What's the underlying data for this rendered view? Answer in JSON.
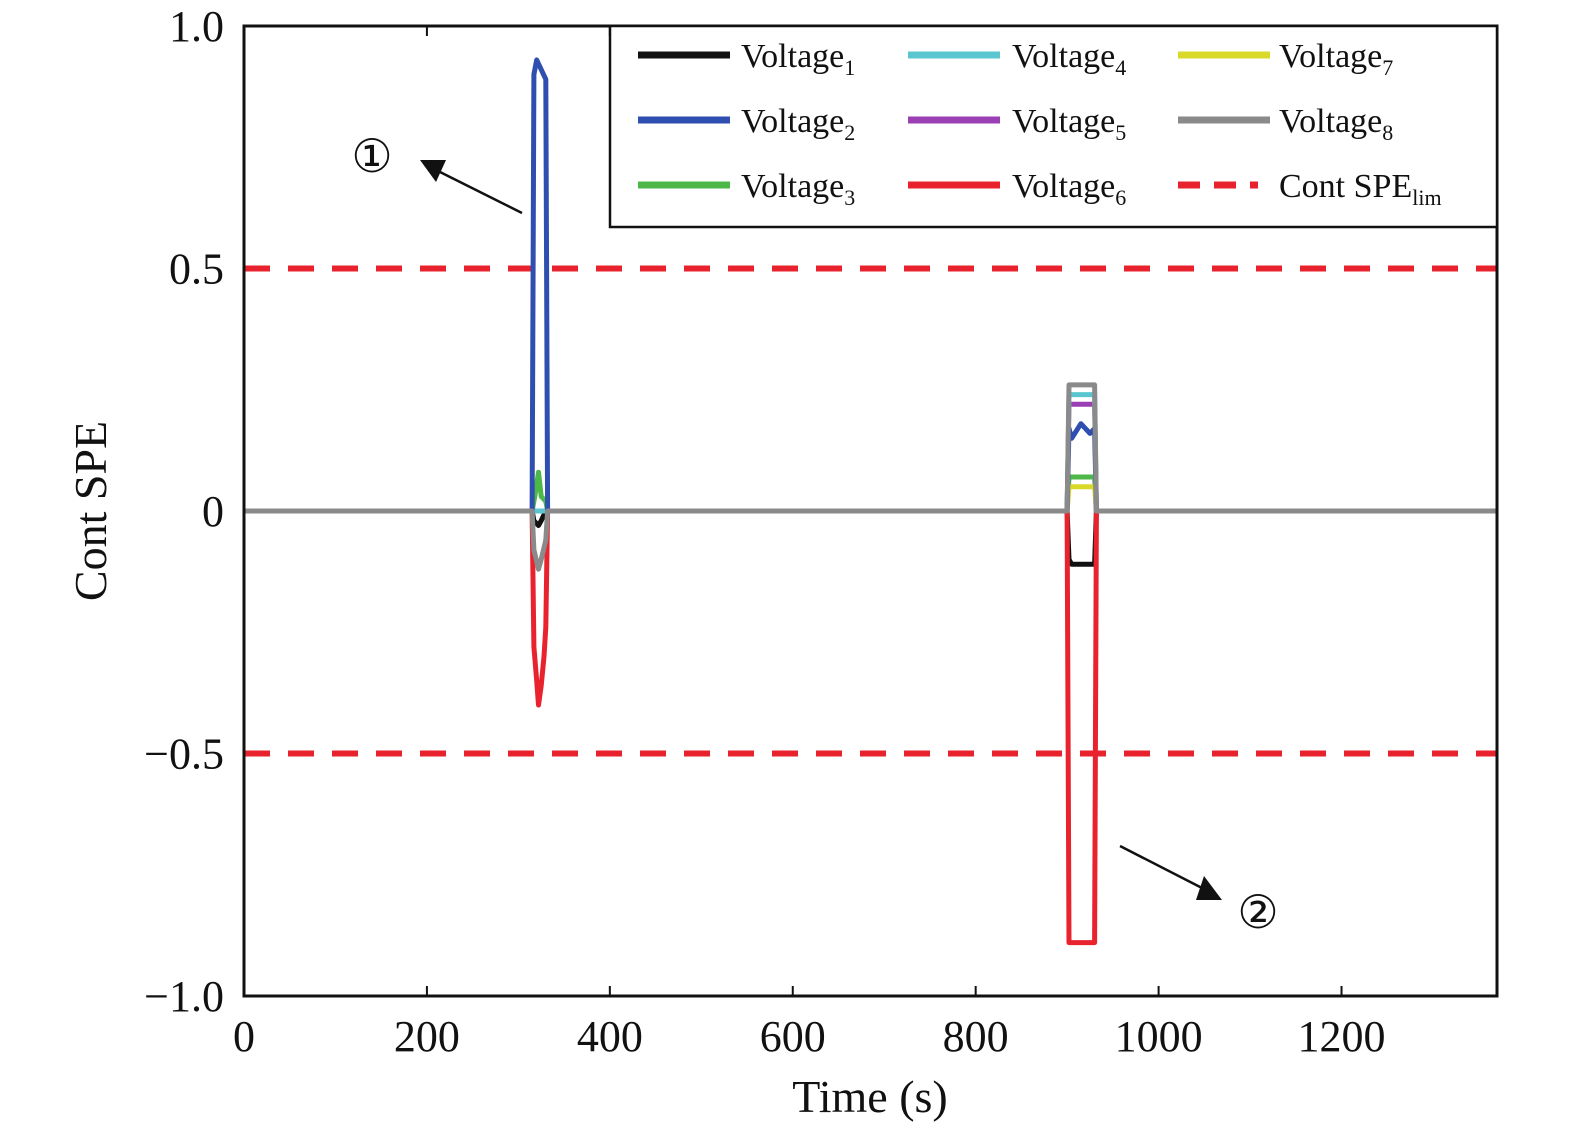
{
  "chart_data": {
    "type": "line",
    "title": "",
    "xlabel": "Time (s)",
    "ylabel": "Cont SPE",
    "xlim": [
      0,
      1370
    ],
    "ylim": [
      -1.0,
      1.0
    ],
    "x_ticks": [
      0,
      200,
      400,
      600,
      800,
      1000,
      1200
    ],
    "x_tick_labels": [
      "0",
      "200",
      "400",
      "600",
      "800",
      "1000",
      "1200"
    ],
    "y_ticks": [
      1.0,
      0.5,
      0,
      -0.5,
      -1.0
    ],
    "y_tick_labels": [
      "1.0",
      "0.5",
      "0",
      "−0.5",
      "−1.0"
    ],
    "grid": false,
    "legend_position": "top-right",
    "series": [
      {
        "name": "Voltage",
        "subscript": "1",
        "color": "#111111",
        "style": "solid",
        "points": [
          [
            0,
            0
          ],
          [
            315,
            0
          ],
          [
            317,
            -0.02
          ],
          [
            322,
            -0.03
          ],
          [
            325,
            -0.02
          ],
          [
            330,
            0
          ],
          [
            900,
            0
          ],
          [
            902,
            -0.1
          ],
          [
            905,
            -0.11
          ],
          [
            930,
            -0.11
          ],
          [
            932,
            0
          ],
          [
            1370,
            0
          ]
        ]
      },
      {
        "name": "Voltage",
        "subscript": "2",
        "color": "#2f4fb0",
        "style": "solid",
        "points": [
          [
            0,
            0
          ],
          [
            315,
            0
          ],
          [
            317,
            0.9
          ],
          [
            320,
            0.93
          ],
          [
            325,
            0.91
          ],
          [
            330,
            0.89
          ],
          [
            332,
            0
          ],
          [
            900,
            0
          ],
          [
            902,
            0.17
          ],
          [
            905,
            0.15
          ],
          [
            915,
            0.18
          ],
          [
            925,
            0.16
          ],
          [
            930,
            0.17
          ],
          [
            932,
            0
          ],
          [
            1370,
            0
          ]
        ]
      },
      {
        "name": "Voltage",
        "subscript": "3",
        "color": "#4db848",
        "style": "solid",
        "points": [
          [
            0,
            0
          ],
          [
            315,
            0
          ],
          [
            318,
            0.03
          ],
          [
            322,
            0.08
          ],
          [
            325,
            0.03
          ],
          [
            330,
            0.02
          ],
          [
            332,
            0
          ],
          [
            900,
            0
          ],
          [
            902,
            0.07
          ],
          [
            930,
            0.07
          ],
          [
            932,
            0
          ],
          [
            1370,
            0
          ]
        ]
      },
      {
        "name": "Voltage",
        "subscript": "4",
        "color": "#5bc6cf",
        "style": "solid",
        "points": [
          [
            0,
            0
          ],
          [
            900,
            0
          ],
          [
            902,
            0.24
          ],
          [
            930,
            0.24
          ],
          [
            932,
            0
          ],
          [
            1370,
            0
          ]
        ]
      },
      {
        "name": "Voltage",
        "subscript": "5",
        "color": "#9b3fb5",
        "style": "solid",
        "points": [
          [
            0,
            0
          ],
          [
            900,
            0
          ],
          [
            902,
            0.22
          ],
          [
            930,
            0.22
          ],
          [
            932,
            0
          ],
          [
            1370,
            0
          ]
        ]
      },
      {
        "name": "Voltage",
        "subscript": "6",
        "color": "#e8232e",
        "style": "solid",
        "points": [
          [
            0,
            0
          ],
          [
            315,
            0
          ],
          [
            317,
            -0.28
          ],
          [
            320,
            -0.35
          ],
          [
            322,
            -0.4
          ],
          [
            325,
            -0.36
          ],
          [
            328,
            -0.3
          ],
          [
            330,
            -0.24
          ],
          [
            332,
            0
          ],
          [
            900,
            0
          ],
          [
            902,
            -0.89
          ],
          [
            930,
            -0.89
          ],
          [
            932,
            0
          ],
          [
            1370,
            0
          ]
        ]
      },
      {
        "name": "Voltage",
        "subscript": "7",
        "color": "#d9d92a",
        "style": "solid",
        "points": [
          [
            0,
            0
          ],
          [
            900,
            0
          ],
          [
            902,
            0.05
          ],
          [
            930,
            0.05
          ],
          [
            932,
            0
          ],
          [
            1370,
            0
          ]
        ]
      },
      {
        "name": "Voltage",
        "subscript": "8",
        "color": "#8a8a8a",
        "style": "solid",
        "points": [
          [
            0,
            0
          ],
          [
            315,
            0
          ],
          [
            317,
            -0.08
          ],
          [
            322,
            -0.12
          ],
          [
            325,
            -0.1
          ],
          [
            330,
            -0.06
          ],
          [
            332,
            0
          ],
          [
            900,
            0
          ],
          [
            902,
            0.26
          ],
          [
            930,
            0.26
          ],
          [
            932,
            0
          ],
          [
            1370,
            0
          ]
        ]
      }
    ],
    "limit_lines": {
      "name": "Cont SPE",
      "subscript": "lim",
      "color": "#e8232e",
      "style": "dashed",
      "values": [
        0.5,
        -0.5
      ]
    },
    "annotations": [
      {
        "text": "①",
        "target": [
          322,
          0.66
        ]
      },
      {
        "text": "②",
        "target": [
          1050,
          -0.83
        ]
      }
    ]
  }
}
